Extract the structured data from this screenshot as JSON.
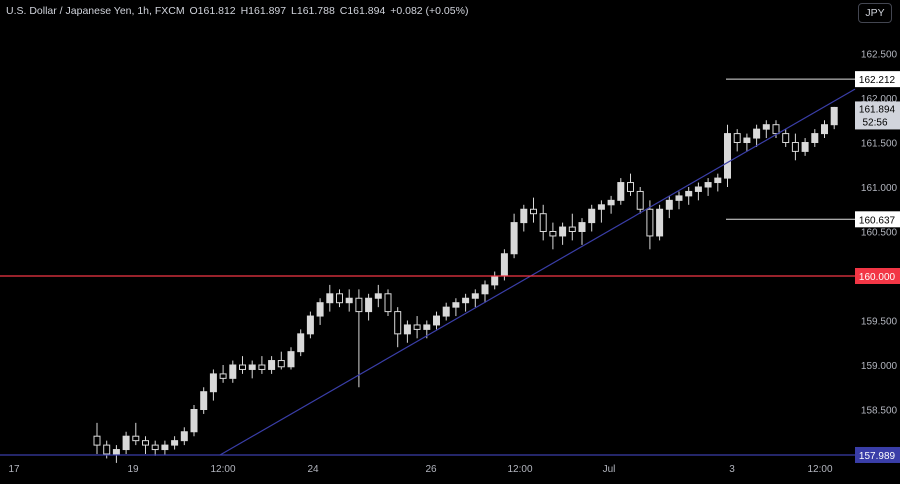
{
  "header": {
    "symbol": "U.S. Dollar / Japanese Yen, 1h, FXCM",
    "open": "O161.812",
    "high": "H161.897",
    "low": "L161.788",
    "close": "C161.894",
    "change": "+0.082 (+0.05%)"
  },
  "currency_button": "JPY",
  "colors": {
    "background": "#000000",
    "candle": "#d9d9d9",
    "trendline": "#3a3ea8",
    "resistance_line": "#f23645",
    "axis_text": "#b2b5be",
    "label_bg": "#ffffff"
  },
  "chart_data": {
    "type": "candlestick",
    "y_axis": {
      "ticks": [
        "162.500",
        "162.000",
        "161.500",
        "161.000",
        "160.500",
        "159.500",
        "159.000",
        "158.500"
      ],
      "min": 157.9,
      "max": 162.8
    },
    "x_axis": {
      "ticks": [
        "17",
        "19",
        "12:00",
        "24",
        "26",
        "12:00",
        "Jul",
        "3",
        "12:00"
      ]
    },
    "levels": [
      {
        "price": 162.212,
        "label": "162.212",
        "style": "short-white"
      },
      {
        "price": 160.637,
        "label": "160.637",
        "style": "short-white"
      },
      {
        "price": 160.0,
        "label": "160.000",
        "style": "full-red"
      },
      {
        "price": 157.989,
        "label": "157.989",
        "style": "blue"
      }
    ],
    "current_price": {
      "label": "161.894",
      "countdown": "52:56",
      "value": 161.894
    },
    "trendline": {
      "start_price": 157.989,
      "end_price": 162.05,
      "start_date": "Jun 21",
      "end_date": "Jul 3"
    },
    "candles_ohlc": [
      [
        158.2,
        158.35,
        158.0,
        158.1
      ],
      [
        158.1,
        158.15,
        157.95,
        158.0
      ],
      [
        158.0,
        158.1,
        157.9,
        158.05
      ],
      [
        158.05,
        158.25,
        158.0,
        158.2
      ],
      [
        158.2,
        158.35,
        158.1,
        158.15
      ],
      [
        158.15,
        158.2,
        158.0,
        158.1
      ],
      [
        158.1,
        158.15,
        157.98,
        158.05
      ],
      [
        158.05,
        158.15,
        157.99,
        158.1
      ],
      [
        158.1,
        158.2,
        158.05,
        158.15
      ],
      [
        158.15,
        158.3,
        158.1,
        158.25
      ],
      [
        158.25,
        158.55,
        158.2,
        158.5
      ],
      [
        158.5,
        158.75,
        158.45,
        158.7
      ],
      [
        158.7,
        158.95,
        158.6,
        158.9
      ],
      [
        158.9,
        159.0,
        158.8,
        158.85
      ],
      [
        158.85,
        159.05,
        158.8,
        159.0
      ],
      [
        159.0,
        159.1,
        158.9,
        158.95
      ],
      [
        158.95,
        159.05,
        158.85,
        159.0
      ],
      [
        159.0,
        159.1,
        158.9,
        158.95
      ],
      [
        158.95,
        159.1,
        158.9,
        159.05
      ],
      [
        159.05,
        159.15,
        158.95,
        158.98
      ],
      [
        158.98,
        159.2,
        158.95,
        159.15
      ],
      [
        159.15,
        159.4,
        159.1,
        159.35
      ],
      [
        159.35,
        159.6,
        159.3,
        159.55
      ],
      [
        159.55,
        159.75,
        159.45,
        159.7
      ],
      [
        159.7,
        159.9,
        159.6,
        159.8
      ],
      [
        159.8,
        159.85,
        159.65,
        159.7
      ],
      [
        159.7,
        159.85,
        159.6,
        159.75
      ],
      [
        159.75,
        159.85,
        158.75,
        159.6
      ],
      [
        159.6,
        159.8,
        159.5,
        159.75
      ],
      [
        159.75,
        159.9,
        159.65,
        159.8
      ],
      [
        159.8,
        159.85,
        159.55,
        159.6
      ],
      [
        159.6,
        159.65,
        159.2,
        159.35
      ],
      [
        159.35,
        159.5,
        159.25,
        159.45
      ],
      [
        159.45,
        159.55,
        159.3,
        159.4
      ],
      [
        159.4,
        159.5,
        159.3,
        159.45
      ],
      [
        159.45,
        159.6,
        159.4,
        159.55
      ],
      [
        159.55,
        159.7,
        159.5,
        159.65
      ],
      [
        159.65,
        159.75,
        159.55,
        159.7
      ],
      [
        159.7,
        159.8,
        159.6,
        159.75
      ],
      [
        159.75,
        159.85,
        159.65,
        159.8
      ],
      [
        159.8,
        159.95,
        159.7,
        159.9
      ],
      [
        159.9,
        160.05,
        159.85,
        160.0
      ],
      [
        160.0,
        160.3,
        159.95,
        160.25
      ],
      [
        160.25,
        160.7,
        160.2,
        160.6
      ],
      [
        160.6,
        160.8,
        160.5,
        160.75
      ],
      [
        160.75,
        160.88,
        160.6,
        160.7
      ],
      [
        160.7,
        160.8,
        160.4,
        160.5
      ],
      [
        160.5,
        160.6,
        160.3,
        160.45
      ],
      [
        160.45,
        160.6,
        160.35,
        160.55
      ],
      [
        160.55,
        160.7,
        160.4,
        160.5
      ],
      [
        160.5,
        160.65,
        160.35,
        160.6
      ],
      [
        160.6,
        160.8,
        160.5,
        160.75
      ],
      [
        160.75,
        160.85,
        160.6,
        160.8
      ],
      [
        160.8,
        160.9,
        160.7,
        160.85
      ],
      [
        160.85,
        161.1,
        160.8,
        161.05
      ],
      [
        161.05,
        161.15,
        160.9,
        160.95
      ],
      [
        160.95,
        161.0,
        160.7,
        160.75
      ],
      [
        160.75,
        160.85,
        160.3,
        160.45
      ],
      [
        160.45,
        160.8,
        160.4,
        160.75
      ],
      [
        160.75,
        160.9,
        160.65,
        160.85
      ],
      [
        160.85,
        160.95,
        160.75,
        160.9
      ],
      [
        160.9,
        161.0,
        160.8,
        160.95
      ],
      [
        160.95,
        161.05,
        160.85,
        161.0
      ],
      [
        161.0,
        161.1,
        160.9,
        161.05
      ],
      [
        161.05,
        161.15,
        160.95,
        161.1
      ],
      [
        161.1,
        161.7,
        161.0,
        161.6
      ],
      [
        161.6,
        161.65,
        161.4,
        161.5
      ],
      [
        161.5,
        161.6,
        161.4,
        161.55
      ],
      [
        161.55,
        161.7,
        161.45,
        161.65
      ],
      [
        161.65,
        161.75,
        161.55,
        161.7
      ],
      [
        161.7,
        161.75,
        161.55,
        161.6
      ],
      [
        161.6,
        161.65,
        161.45,
        161.5
      ],
      [
        161.5,
        161.6,
        161.3,
        161.4
      ],
      [
        161.4,
        161.55,
        161.35,
        161.5
      ],
      [
        161.5,
        161.65,
        161.45,
        161.6
      ],
      [
        161.6,
        161.75,
        161.55,
        161.7
      ],
      [
        161.7,
        161.9,
        161.65,
        161.894
      ]
    ]
  }
}
